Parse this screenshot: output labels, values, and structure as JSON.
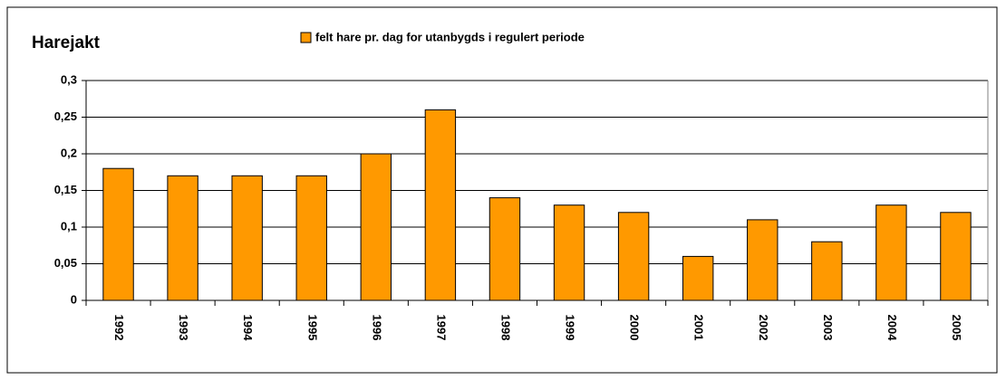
{
  "chart_data": {
    "type": "bar",
    "title": "Harejakt",
    "series": [
      {
        "name": "felt hare pr. dag for utanbygds i regulert periode",
        "color": "#ff9900",
        "values": [
          0.18,
          0.17,
          0.17,
          0.17,
          0.2,
          0.26,
          0.14,
          0.13,
          0.12,
          0.06,
          0.11,
          0.08,
          0.13,
          0.12
        ]
      }
    ],
    "categories": [
      "1992",
      "1993",
      "1994",
      "1995",
      "1996",
      "1997",
      "1998",
      "1999",
      "2000",
      "2001",
      "2002",
      "2003",
      "2004",
      "2005"
    ],
    "ylim": [
      0,
      0.3
    ],
    "yticks": [
      0,
      {
        "value": 0.05,
        "label": "0,05"
      },
      {
        "value": 0.1,
        "label": "0,1"
      },
      {
        "value": 0.15,
        "label": "0,15"
      },
      {
        "value": 0.2,
        "label": "0,2"
      },
      {
        "value": 0.25,
        "label": "0,25"
      },
      {
        "value": 0.3,
        "label": "0,3"
      }
    ],
    "grid": true
  }
}
